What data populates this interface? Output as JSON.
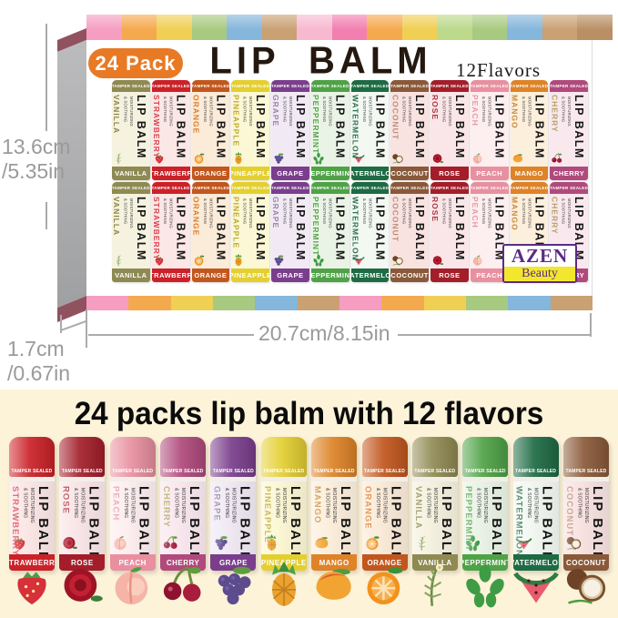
{
  "colors": {
    "page_bg": "#FFFFFF",
    "cream_bg": "#FCF3D9",
    "badge_bg": "#E87A25",
    "title_text": "#241810",
    "heading_text": "#0C0C0C",
    "dim_text": "#9A9A9A",
    "dim_line": "#ABABAB",
    "logo_purple": "#5B2C86",
    "logo_yellow": "#F2E72E",
    "side_maroon": "#91525F",
    "top_stripes": [
      "#F59EC2",
      "#F5A94F",
      "#F0CF55",
      "#A8CA80",
      "#85B6DB",
      "#C9A173",
      "#F8B9D0",
      "#F27FB0",
      "#F5A94F",
      "#F0CF55",
      "#BCD98C",
      "#A8CA80",
      "#85B6DB",
      "#C9A173",
      "#B98F63"
    ],
    "bottom_stripes": [
      "#F59EC2",
      "#F5A94F",
      "#F0CF55",
      "#A8CA80",
      "#85B6DB",
      "#C9A173",
      "#F59EC2",
      "#F5A94F",
      "#F0CF55",
      "#A8CA80",
      "#85B6DB",
      "#C9A173"
    ]
  },
  "upper": {
    "badge_label": "24 Pack",
    "title": "LIP BALM",
    "flavor_count": "12Flavors",
    "dim_height_cm": "13.6cm",
    "dim_height_in": "/5.35in",
    "dim_depth_cm": "1.7cm",
    "dim_depth_in": "/0.67in",
    "dim_width": "20.7cm/8.15in",
    "logo_top": "AZEN",
    "logo_bottom": "Beauty",
    "box_order": [
      "vanilla",
      "strawberry",
      "orange",
      "pineapple",
      "grape",
      "peppermint",
      "watermelon",
      "coconut",
      "rose",
      "peach",
      "mango",
      "cherry"
    ]
  },
  "tube_common": {
    "tamper": "TAMPER SEALED",
    "brand": "LIP BALM",
    "sub1": "MOISTURIZING",
    "sub2": "& SOOTHING"
  },
  "flavors": {
    "vanilla": {
      "name": "VANILLA",
      "band": "#8F8A52",
      "body": "#F5F2E0",
      "text": "#8A8449"
    },
    "strawberry": {
      "name": "STRAWBERRY",
      "band": "#CB2128",
      "body": "#FBE7E6",
      "text": "#D8434B"
    },
    "orange": {
      "name": "ORANGE",
      "band": "#C2571E",
      "body": "#FBEBD9",
      "text": "#DC7A28"
    },
    "pineapple": {
      "name": "PINEAPPLE",
      "band": "#E4CF31",
      "body": "#FCF7D5",
      "text": "#BBA72E"
    },
    "grape": {
      "name": "GRAPE",
      "band": "#7A3E8C",
      "body": "#F1EAF4",
      "text": "#9783A8"
    },
    "peppermint": {
      "name": "PEPPERMINT",
      "band": "#4FA246",
      "body": "#EAF4E6",
      "text": "#55A34C"
    },
    "watermelon": {
      "name": "WATERMELON",
      "band": "#1E6B44",
      "body": "#F3F8F3",
      "text": "#2E6F4D"
    },
    "coconut": {
      "name": "COCONUT",
      "band": "#8A5939",
      "body": "#F8E3E1",
      "text": "#BC8C79"
    },
    "rose": {
      "name": "ROSE",
      "band": "#A31E2A",
      "body": "#FAE6E8",
      "text": "#AC3742"
    },
    "peach": {
      "name": "PEACH",
      "band": "#E890A0",
      "body": "#FDEEF0",
      "text": "#E998A5"
    },
    "mango": {
      "name": "MANGO",
      "band": "#DE8327",
      "body": "#FCEFDC",
      "text": "#C98A3C"
    },
    "cherry": {
      "name": "CHERRY",
      "band": "#B04A7C",
      "body": "#FAE8EF",
      "text": "#B1A15F"
    }
  },
  "lower": {
    "heading": "24 packs lip balm with 12 flavors",
    "order": [
      "strawberry",
      "rose",
      "peach",
      "cherry",
      "grape",
      "pineapple",
      "mango",
      "orange",
      "vanilla",
      "peppermint",
      "watermelon",
      "coconut"
    ]
  }
}
